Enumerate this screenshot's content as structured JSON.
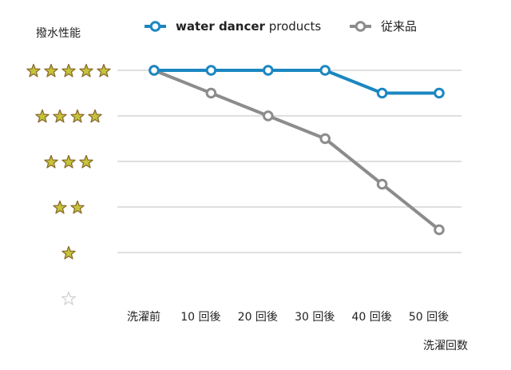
{
  "chart_data": {
    "type": "line",
    "ylabel": "撥水性能",
    "xlabel": "洗濯回数",
    "categories": [
      "洗濯前",
      "10 回後",
      "20 回後",
      "30 回後",
      "40 回後",
      "50 回後"
    ],
    "y_ticks": [
      0,
      1,
      2,
      3,
      4,
      5
    ],
    "ylim": [
      0,
      5
    ],
    "grid": true,
    "legend_position": "top",
    "series": [
      {
        "name": "water dancer products",
        "name_bold": "water dancer",
        "name_rest": " products",
        "color": "#1b87c1",
        "values": [
          5,
          5,
          5,
          5,
          4.5,
          4.5
        ]
      },
      {
        "name": "従来品",
        "color": "#8c8c8c",
        "values": [
          5,
          4.5,
          4,
          3.5,
          2.5,
          1.5
        ]
      }
    ],
    "star_fill_color": "#c4c43a",
    "star_stroke_color": "#8a6a2c",
    "grid_color": "#bfbfbf"
  }
}
